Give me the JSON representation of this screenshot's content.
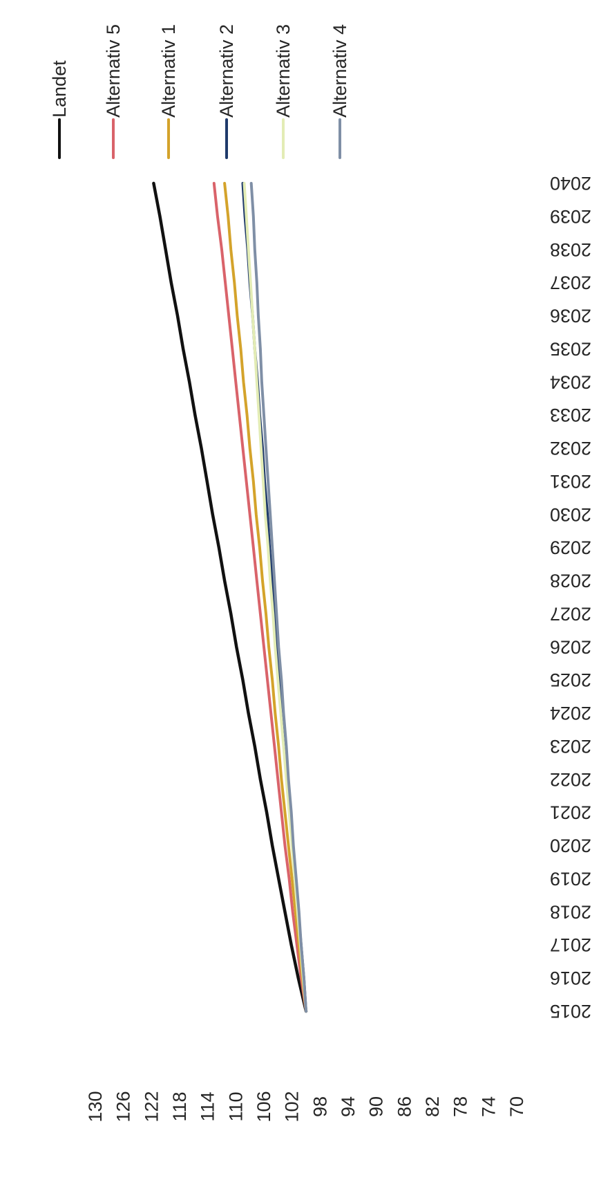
{
  "chart_data": {
    "type": "line",
    "title": "",
    "xlabel": "",
    "ylabel": "",
    "x": [
      2015,
      2016,
      2017,
      2018,
      2019,
      2020,
      2021,
      2022,
      2023,
      2024,
      2025,
      2026,
      2027,
      2028,
      2029,
      2030,
      2031,
      2032,
      2033,
      2034,
      2035,
      2036,
      2037,
      2038,
      2039,
      2040
    ],
    "x_tick_labels": [
      "2015",
      "2016",
      "2017",
      "2018",
      "2019",
      "2020",
      "2021",
      "2022",
      "2023",
      "2024",
      "2025",
      "2026",
      "2027",
      "2028",
      "2029",
      "2030",
      "2031",
      "2032",
      "2033",
      "2034",
      "2035",
      "2036",
      "2037",
      "2038",
      "2039",
      "2040"
    ],
    "ylim": [
      70,
      130
    ],
    "y_tick_labels": [
      "70",
      "74",
      "78",
      "82",
      "86",
      "90",
      "94",
      "98",
      "102",
      "106",
      "110",
      "114",
      "118",
      "122",
      "126",
      "130"
    ],
    "grid": false,
    "legend_position": "right",
    "orientation": "rotated-90-counterclockwise",
    "series": [
      {
        "name": "Landet",
        "color": "#111111",
        "values": [
          100.0,
          101.1,
          102.1,
          103.0,
          103.9,
          104.8,
          105.6,
          106.5,
          107.3,
          108.2,
          109.0,
          109.9,
          110.7,
          111.6,
          112.4,
          113.3,
          114.1,
          114.9,
          115.8,
          116.6,
          117.5,
          118.3,
          119.2,
          120.0,
          120.8,
          121.7
        ]
      },
      {
        "name": "Alternativ 5",
        "color": "#d9636a",
        "values": [
          100.0,
          100.7,
          101.3,
          101.9,
          102.4,
          103.0,
          103.5,
          104.0,
          104.5,
          105.0,
          105.5,
          106.0,
          106.5,
          107.0,
          107.5,
          108.0,
          108.5,
          109.0,
          109.5,
          110.0,
          110.5,
          111.0,
          111.5,
          112.0,
          112.6,
          113.1
        ]
      },
      {
        "name": "Alternativ 1",
        "color": "#d4a32b",
        "values": [
          100.0,
          100.5,
          101.0,
          101.5,
          102.0,
          102.5,
          103.0,
          103.5,
          103.9,
          104.4,
          104.8,
          105.3,
          105.7,
          106.2,
          106.6,
          107.1,
          107.5,
          108.0,
          108.4,
          108.9,
          109.3,
          109.8,
          110.2,
          110.7,
          111.1,
          111.6
        ]
      },
      {
        "name": "Alternativ 2",
        "color": "#1f3a6b",
        "values": [
          100.0,
          100.3,
          100.7,
          101.1,
          101.5,
          101.9,
          102.3,
          102.6,
          103.0,
          103.4,
          103.7,
          104.1,
          104.5,
          104.8,
          105.2,
          105.5,
          105.9,
          106.2,
          106.6,
          106.9,
          107.3,
          107.6,
          108.0,
          108.3,
          108.7,
          109.0
        ]
      },
      {
        "name": "Alternativ 3",
        "color": "#e3ecb5",
        "values": [
          100.0,
          100.4,
          100.8,
          101.2,
          101.6,
          102.0,
          102.4,
          102.8,
          103.2,
          103.6,
          104.0,
          104.4,
          104.7,
          105.1,
          105.4,
          105.8,
          106.1,
          106.4,
          106.7,
          107.0,
          107.3,
          107.6,
          107.9,
          108.2,
          108.5,
          108.8
        ]
      },
      {
        "name": "Alternativ 4",
        "color": "#7f8fa6",
        "values": [
          100.0,
          100.3,
          100.7,
          101.0,
          101.4,
          101.8,
          102.1,
          102.5,
          102.8,
          103.2,
          103.5,
          103.9,
          104.2,
          104.5,
          104.8,
          105.1,
          105.4,
          105.7,
          106.0,
          106.3,
          106.5,
          106.8,
          107.0,
          107.3,
          107.5,
          107.8
        ]
      }
    ]
  }
}
